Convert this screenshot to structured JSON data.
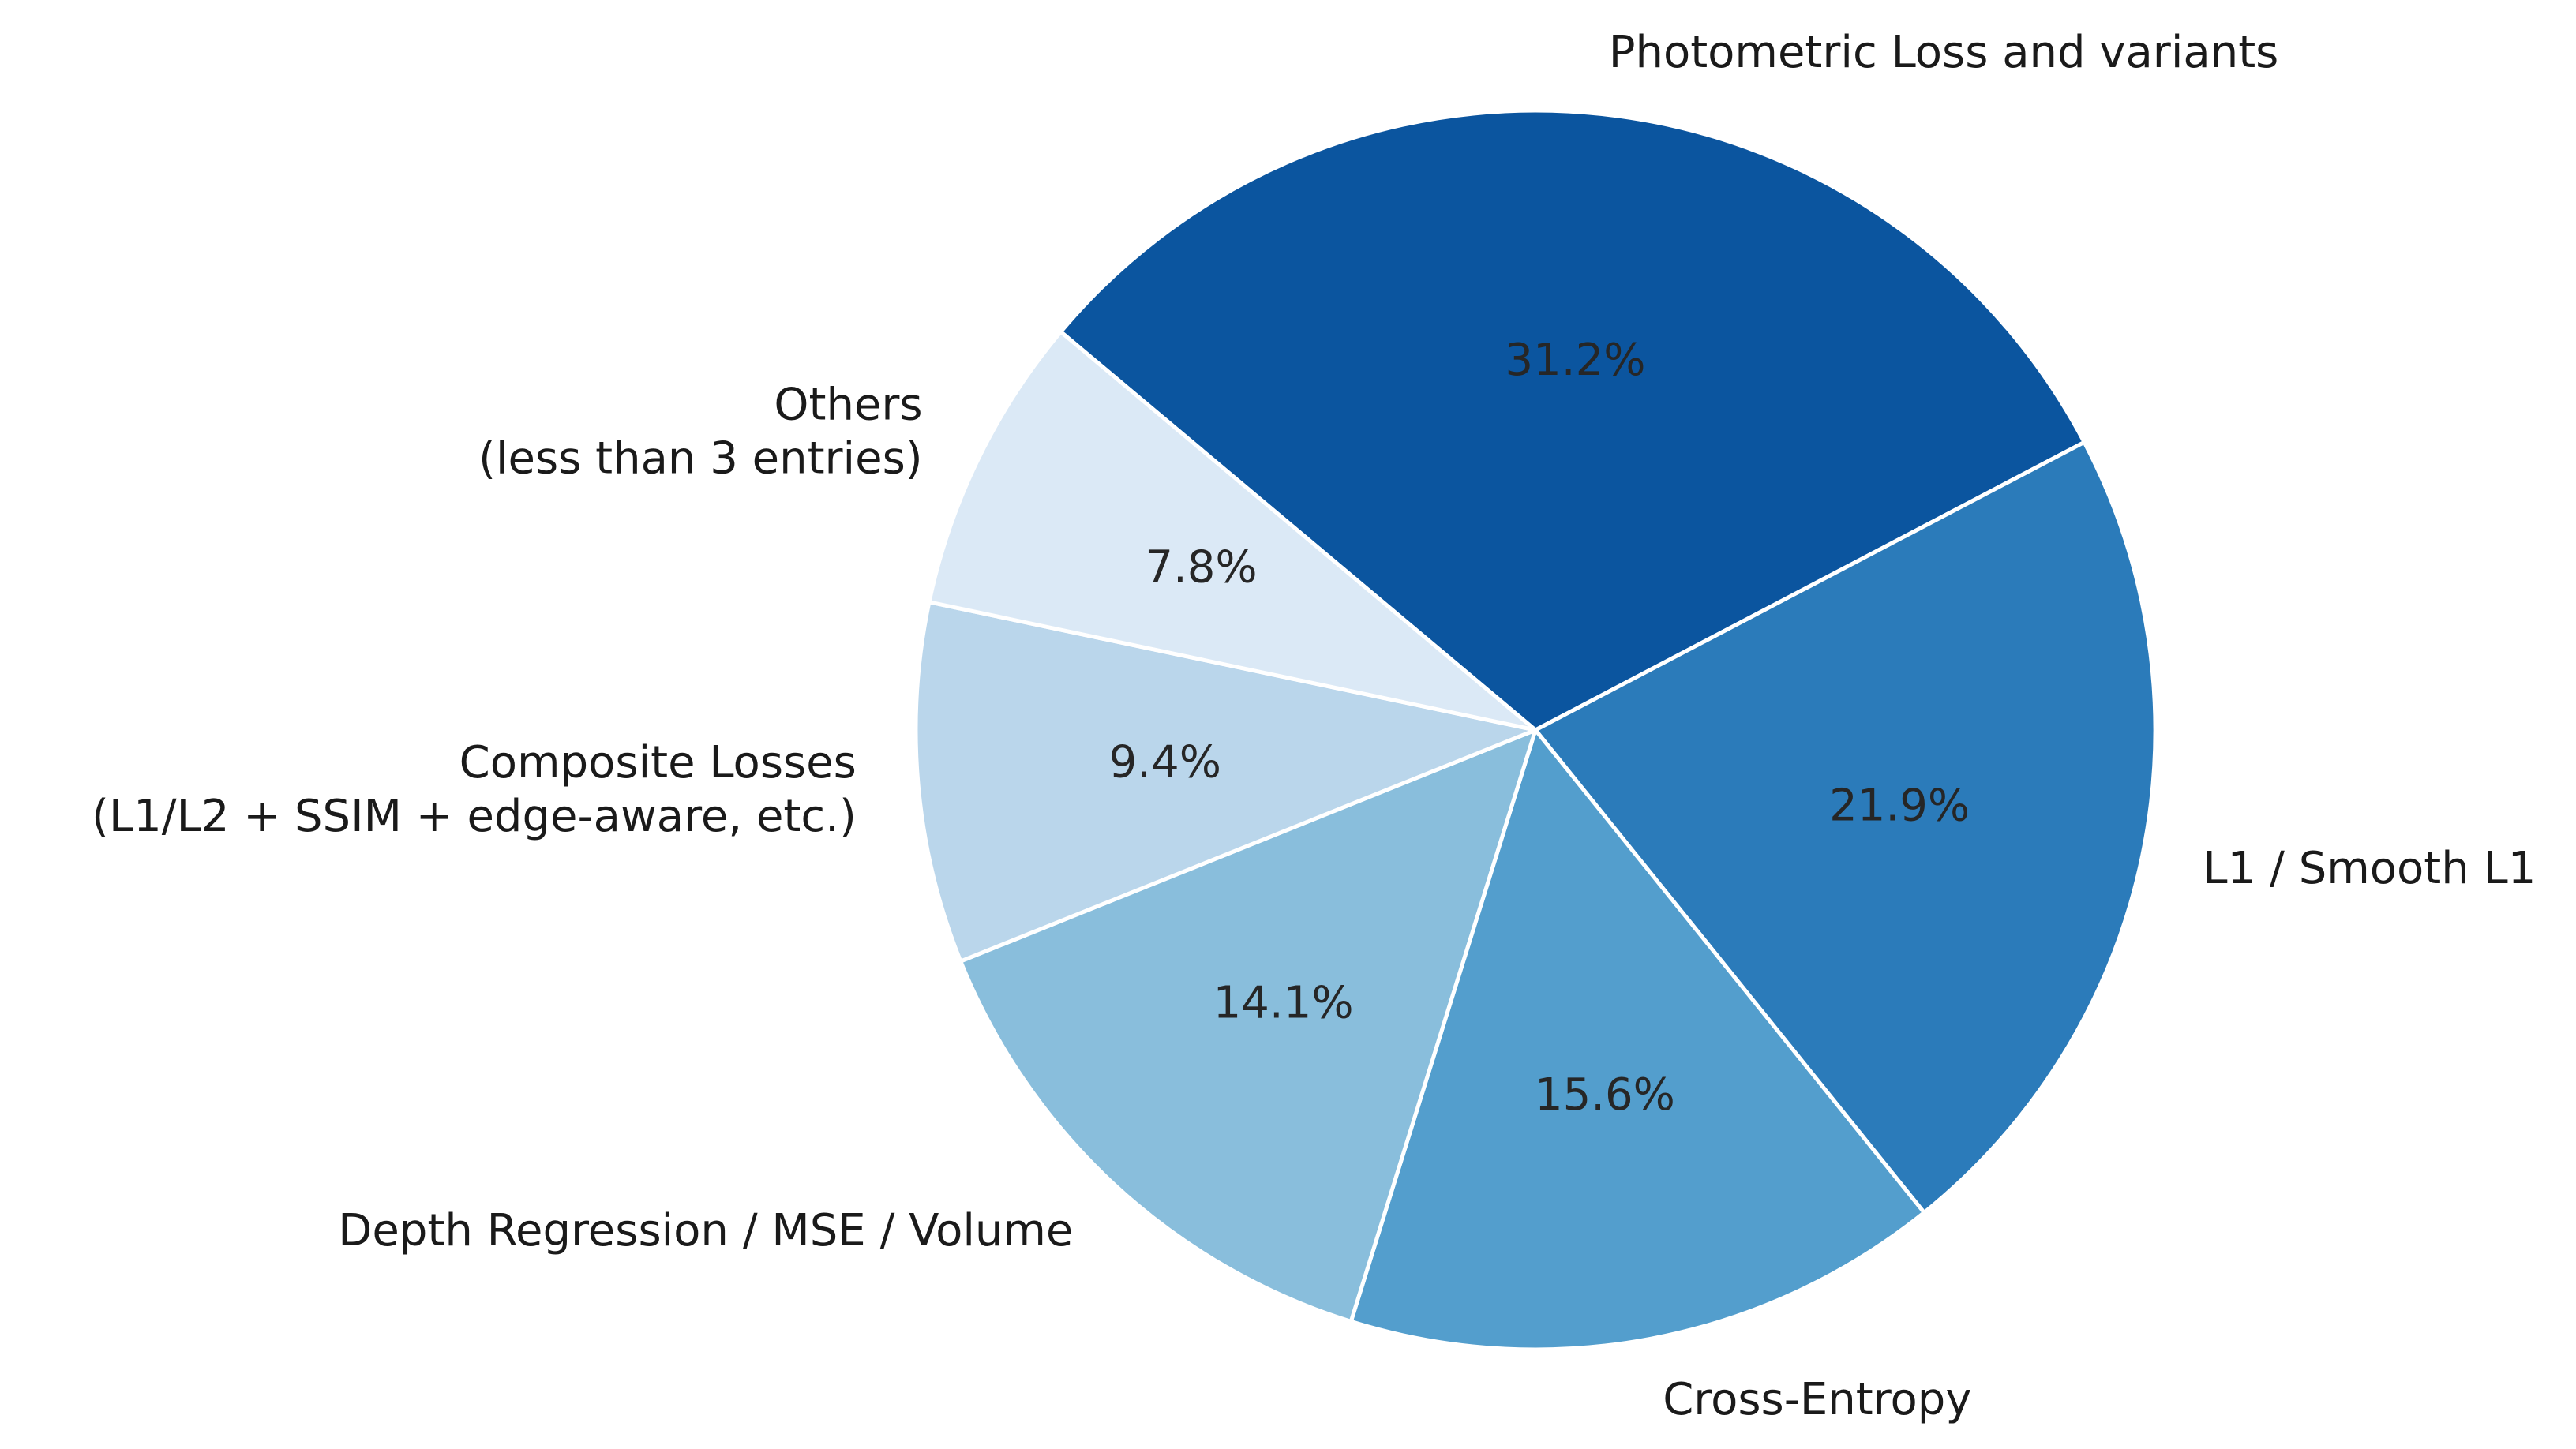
{
  "chart_data": {
    "type": "pie",
    "title": "",
    "start_angle_deg": 140,
    "direction": "clockwise",
    "slices": [
      {
        "label": "Photometric Loss and variants",
        "label_lines": [
          "Photometric Loss and variants"
        ],
        "value": 31.2,
        "pct_label": "31.2%",
        "color": "#0b559f"
      },
      {
        "label": "L1 / Smooth L1",
        "label_lines": [
          "L1 / Smooth L1"
        ],
        "value": 21.9,
        "pct_label": "21.9%",
        "color": "#2b7bba"
      },
      {
        "label": "Cross-Entropy",
        "label_lines": [
          "Cross-Entropy"
        ],
        "value": 15.6,
        "pct_label": "15.6%",
        "color": "#539ecd"
      },
      {
        "label": "Depth Regression / MSE / Volume",
        "label_lines": [
          "Depth Regression / MSE / Volume"
        ],
        "value": 14.1,
        "pct_label": "14.1%",
        "color": "#89bedc"
      },
      {
        "label": "Composite Losses\n(L1/L2 + SSIM + edge-aware, etc.)",
        "label_lines": [
          "Composite Losses",
          "(L1/L2 + SSIM + edge-aware, etc.)"
        ],
        "value": 9.4,
        "pct_label": "9.4%",
        "color": "#bad6eb"
      },
      {
        "label": "Others\n(less than 3 entries)",
        "label_lines": [
          "Others",
          "(less than 3 entries)"
        ],
        "value": 7.8,
        "pct_label": "7.8%",
        "color": "#dbe9f6"
      }
    ],
    "legend": "none"
  }
}
